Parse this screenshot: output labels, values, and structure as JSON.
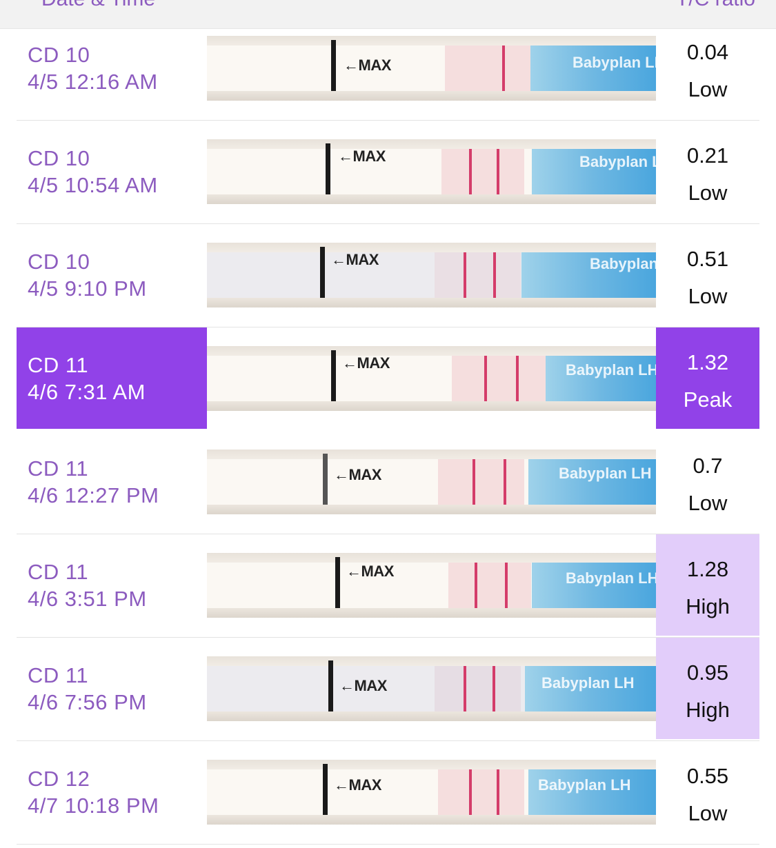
{
  "header": {
    "left_label": "Date & Time",
    "right_label": "T/C ratio"
  },
  "colors": {
    "accent": "#8c5bbf",
    "peak": "#9142e8",
    "high": "#e2cdfa"
  },
  "rows": [
    {
      "cycle_day": "CD 10",
      "datetime": "4/5 12:16 AM",
      "ratio": "0.04",
      "level": "Low"
    },
    {
      "cycle_day": "CD 10",
      "datetime": "4/5 10:54 AM",
      "ratio": "0.21",
      "level": "Low"
    },
    {
      "cycle_day": "CD 10",
      "datetime": "4/5 9:10 PM",
      "ratio": "0.51",
      "level": "Low"
    },
    {
      "cycle_day": "CD 11",
      "datetime": "4/6 7:31 AM",
      "ratio": "1.32",
      "level": "Peak"
    },
    {
      "cycle_day": "CD 11",
      "datetime": "4/6 12:27 PM",
      "ratio": "0.7",
      "level": "Low"
    },
    {
      "cycle_day": "CD 11",
      "datetime": "4/6 3:51 PM",
      "ratio": "1.28",
      "level": "High"
    },
    {
      "cycle_day": "CD 11",
      "datetime": "4/6 7:56 PM",
      "ratio": "0.95",
      "level": "High"
    },
    {
      "cycle_day": "CD 12",
      "datetime": "4/7 10:18 PM",
      "ratio": "0.55",
      "level": "Low"
    }
  ],
  "strip_text": {
    "max_label": "←MAX",
    "brand_label": "Babyplan LH"
  }
}
